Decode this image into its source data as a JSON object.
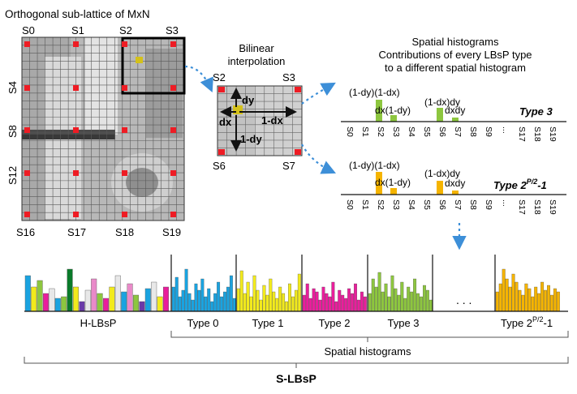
{
  "lattice": {
    "title": "Orthogonal sub-lattice of MxN",
    "top_labels": [
      "S0",
      "S1",
      "S2",
      "S3"
    ],
    "left_labels": [
      "S4",
      "S8",
      "S12"
    ],
    "bottom_labels": [
      "S16",
      "S17",
      "S18",
      "S19"
    ]
  },
  "interp": {
    "title_line1": "Bilinear",
    "title_line2": "interpolation",
    "corners": [
      "S2",
      "S3",
      "S6",
      "S7"
    ],
    "dy": "dy",
    "dx": "dx",
    "one_minus_dx": "1-dx",
    "one_minus_dy": "1-dy"
  },
  "spatial": {
    "title_line1": "Spatial histograms",
    "title_line2": "Contributions of every LBsP type",
    "title_line3": "to a different spatial histogram",
    "axis_labels": [
      "S0",
      "S1",
      "S2",
      "S3",
      "S4",
      "S5",
      "S6",
      "S7",
      "S8",
      "S9",
      "...",
      "S17",
      "S18",
      "S19"
    ],
    "type_a": "Type 3",
    "type_b_base": "Type 2",
    "type_b_sup": "P/2",
    "type_b_tail": "-1",
    "contributions": {
      "s2_top": "(1-dy)(1-dx)",
      "s3": "dx(1-dy)",
      "s6": "(1-dx)dy",
      "s7": "dxdy"
    }
  },
  "bottom": {
    "hlbsp": "H-LBsP",
    "types": [
      "Type 0",
      "Type 1",
      "Type 2",
      "Type 3"
    ],
    "dots": ". . .",
    "last_base": "Type 2",
    "last_sup": "P/2",
    "last_tail": "-1",
    "spatial": "Spatial histograms",
    "slbsp": "S-LBsP"
  },
  "colors": {
    "green": "#8dc63f",
    "orange": "#f5b400",
    "blue": "#1aa3e0",
    "yellow": "#f2ea1c",
    "magenta": "#e91e9c",
    "red": "#ee1c24",
    "arrow": "#3d8fd8"
  }
}
